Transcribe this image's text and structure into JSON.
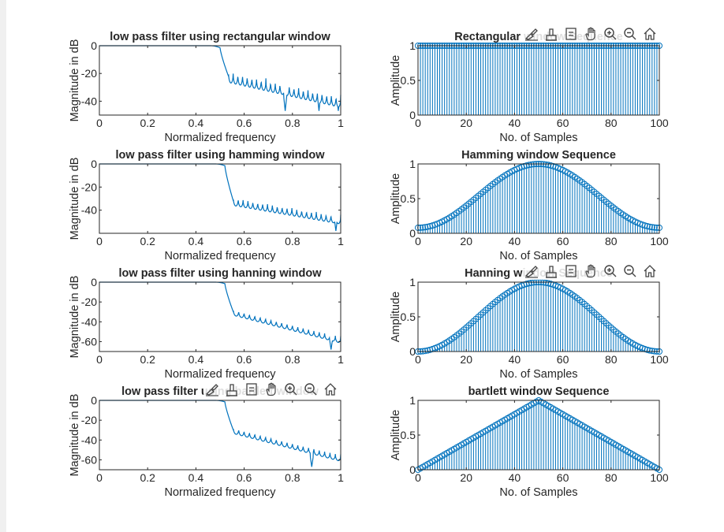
{
  "colors": {
    "line": "#0072BD",
    "axis": "#262626",
    "background": "#ffffff",
    "page": "#f0f0f0"
  },
  "axes_toolbar_icons": [
    "brush-data-icon",
    "data-tips-icon",
    "pan-icon-placeholder",
    "pan-icon",
    "zoom-in-icon",
    "zoom-out-icon",
    "home-icon"
  ],
  "chart_data": [
    {
      "type": "line",
      "title": "low pass filter using rectangular window",
      "xlabel": "Normalized frequency",
      "ylabel": "Magnitude in dB",
      "xlim": [
        0,
        1
      ],
      "ylim": [
        -50,
        0
      ],
      "xticks": [
        "0",
        "0.2",
        "0.4",
        "0.6",
        "0.8",
        "1"
      ],
      "yticks": [
        "0",
        "-20",
        "-40"
      ],
      "ytick_values": [
        0,
        -20,
        -40
      ],
      "series": [
        {
          "window": "rectangular",
          "passband_db": 0,
          "cutoff": 0.5,
          "transition_floor_db": -22,
          "stopband_end_db": -40,
          "ripple_db": 9,
          "lobes": 24,
          "notch_db": -47,
          "notch_x": [
            0.77,
            0.91,
            0.99
          ]
        }
      ]
    },
    {
      "type": "stem",
      "title": "Rectangular window Sequence",
      "xlabel": "No. of Samples",
      "ylabel": "Amplitude",
      "xlim": [
        0,
        100
      ],
      "ylim": [
        0,
        1
      ],
      "xticks": [
        "0",
        "20",
        "40",
        "60",
        "80",
        "100"
      ],
      "yticks": [
        "0",
        "0.5",
        "1"
      ],
      "ytick_values": [
        0,
        0.5,
        1
      ],
      "series": [
        {
          "window": "rectangular",
          "n": 101,
          "marker": "circle"
        }
      ]
    },
    {
      "type": "line",
      "title": "low pass filter using hamming window",
      "xlabel": "Normalized frequency",
      "ylabel": "Magnitude in dB",
      "xlim": [
        0,
        1
      ],
      "ylim": [
        -60,
        0
      ],
      "xticks": [
        "0",
        "0.2",
        "0.4",
        "0.6",
        "0.8",
        "1"
      ],
      "yticks": [
        "0",
        "-20",
        "-40"
      ],
      "ytick_values": [
        0,
        -20,
        -40
      ],
      "series": [
        {
          "window": "hamming",
          "passband_db": 0,
          "cutoff": 0.52,
          "transition_floor_db": -32,
          "stopband_end_db": -48,
          "ripple_db": 8,
          "lobes": 22,
          "notch_db": -58,
          "notch_x": [
            0.98
          ]
        }
      ]
    },
    {
      "type": "stem",
      "title": "Hamming window Sequence",
      "xlabel": "No. of Samples",
      "ylabel": "Amplitude",
      "xlim": [
        0,
        100
      ],
      "ylim": [
        0,
        1
      ],
      "xticks": [
        "0",
        "20",
        "40",
        "60",
        "80",
        "100"
      ],
      "yticks": [
        "0",
        "0.5",
        "1"
      ],
      "ytick_values": [
        0,
        0.5,
        1
      ],
      "series": [
        {
          "window": "hamming",
          "n": 101,
          "marker": "circle"
        }
      ]
    },
    {
      "type": "line",
      "title": "low pass filter using hanning window",
      "xlabel": "Normalized frequency",
      "ylabel": "Magnitude in dB",
      "xlim": [
        0,
        1
      ],
      "ylim": [
        -70,
        0
      ],
      "xticks": [
        "0",
        "0.2",
        "0.4",
        "0.6",
        "0.8",
        "1"
      ],
      "yticks": [
        "0",
        "-20",
        "-40",
        "-60"
      ],
      "ytick_values": [
        0,
        -20,
        -40,
        -60
      ],
      "series": [
        {
          "window": "hanning",
          "passband_db": 0,
          "cutoff": 0.52,
          "transition_floor_db": -30,
          "stopband_end_db": -58,
          "ripple_db": 7,
          "lobes": 20,
          "notch_db": -68,
          "notch_x": [
            0.96
          ]
        }
      ]
    },
    {
      "type": "stem",
      "title": "Hanning window Sequence",
      "xlabel": "No. of Samples",
      "ylabel": "Amplitude",
      "xlim": [
        0,
        100
      ],
      "ylim": [
        0,
        1
      ],
      "xticks": [
        "0",
        "20",
        "40",
        "60",
        "80",
        "100"
      ],
      "yticks": [
        "0",
        "0.5",
        "1"
      ],
      "ytick_values": [
        0,
        0.5,
        1
      ],
      "series": [
        {
          "window": "hanning",
          "n": 101,
          "marker": "circle"
        }
      ]
    },
    {
      "type": "line",
      "title": "low pass filter using bartlett window",
      "xlabel": "Normalized frequency",
      "ylabel": "Magnitude in dB",
      "xlim": [
        0,
        1
      ],
      "ylim": [
        -70,
        0
      ],
      "xticks": [
        "0",
        "0.2",
        "0.4",
        "0.6",
        "0.8",
        "1"
      ],
      "yticks": [
        "0",
        "-20",
        "-40",
        "-60"
      ],
      "ytick_values": [
        0,
        -20,
        -40,
        -60
      ],
      "series": [
        {
          "window": "bartlett",
          "passband_db": 0,
          "cutoff": 0.52,
          "transition_floor_db": -30,
          "stopband_end_db": -58,
          "ripple_db": 7,
          "lobes": 20,
          "notch_db": -67,
          "notch_x": [
            0.88
          ]
        }
      ]
    },
    {
      "type": "stem",
      "title": "bartlett window Sequence",
      "xlabel": "No. of Samples",
      "ylabel": "Amplitude",
      "xlim": [
        0,
        100
      ],
      "ylim": [
        0,
        1
      ],
      "xticks": [
        "0",
        "20",
        "40",
        "60",
        "80",
        "100"
      ],
      "yticks": [
        "0",
        "0.5",
        "1"
      ],
      "ytick_values": [
        0,
        0.5,
        1
      ],
      "series": [
        {
          "window": "bartlett",
          "n": 101,
          "marker": "circle"
        }
      ]
    }
  ]
}
